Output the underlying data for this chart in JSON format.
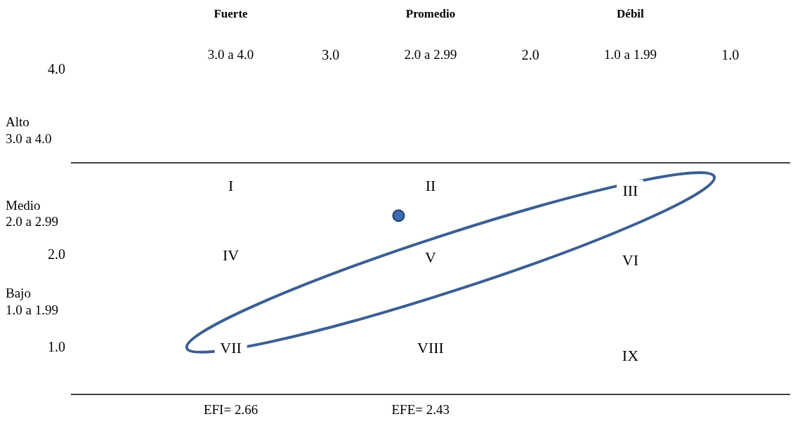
{
  "chart_data": {
    "type": "scatter",
    "x": [
      2.66
    ],
    "values": [
      2.43
    ],
    "color": "#3f6bb0",
    "xlim": [
      4.3,
      0.7
    ],
    "ylim": [
      0.5,
      4.0
    ],
    "xticks": [
      {
        "value": 3,
        "label": "3.0"
      },
      {
        "value": 2,
        "label": "2.0"
      },
      {
        "value": 1,
        "label": "1.0"
      }
    ],
    "yticks": [
      {
        "value": 4,
        "label": "4.0"
      },
      {
        "value": 2,
        "label": "2.0"
      },
      {
        "value": 1,
        "label": "1.0"
      }
    ],
    "marker": "circle",
    "grid": false,
    "ref_lines": [
      {
        "axis": "y",
        "value": 3,
        "color": "#000000",
        "line_style": "solid"
      }
    ],
    "annotations": [
      "Fuerte",
      "Promedio",
      "Débil",
      "3.0 a 4.0",
      "2.0 a 2.99",
      "1.0 a 1.99",
      "Alto\n3.0 a 4.0",
      "Medio\n2.0 a 2.99",
      "Bajo\n1.0 a 1.99",
      "I",
      "II",
      "III",
      "IV",
      "V",
      "VI",
      "VII",
      "VIII",
      "IX",
      "EFI= 2.66",
      "EFE= 2.43"
    ]
  }
}
